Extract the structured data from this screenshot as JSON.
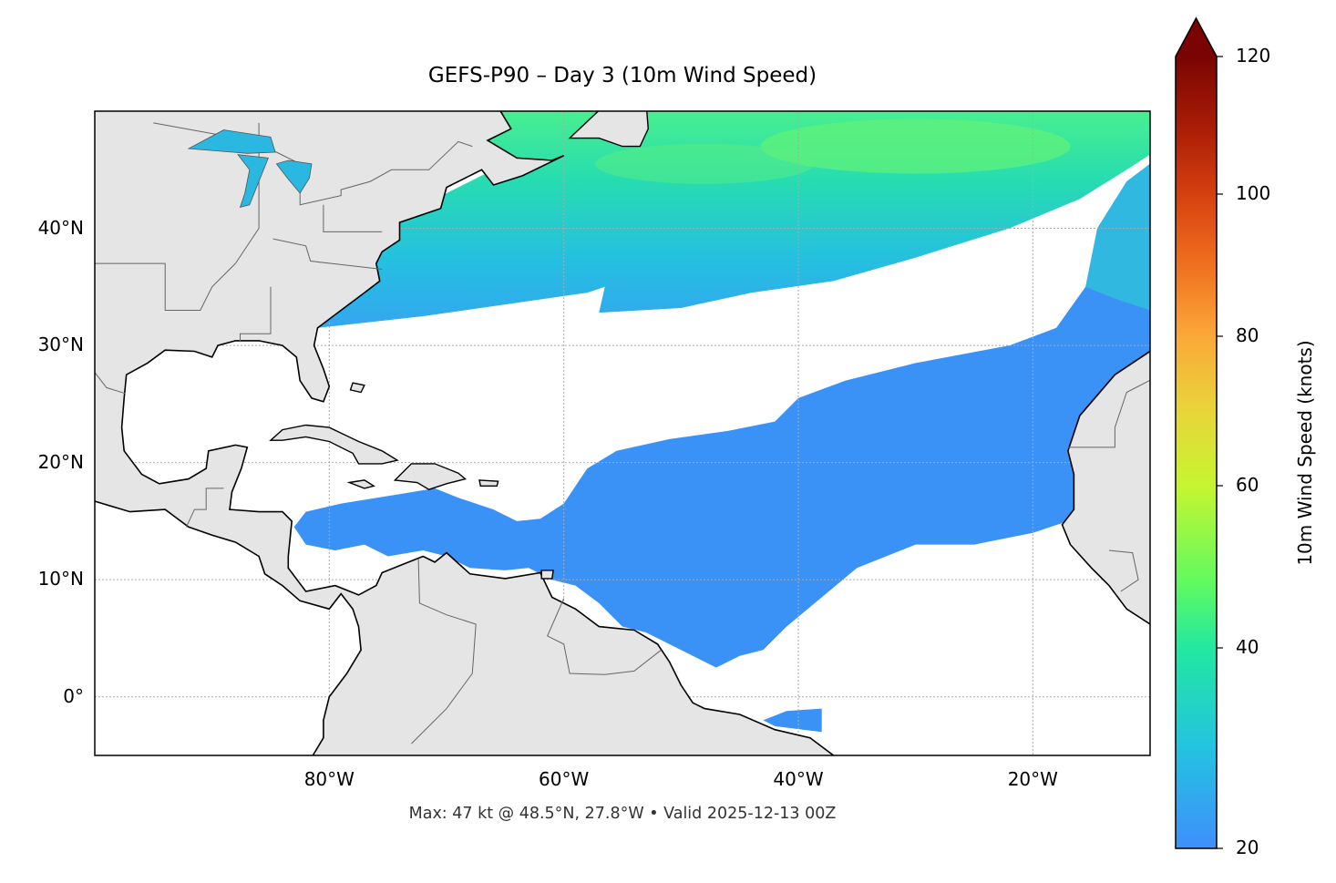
{
  "title": "GEFS-P90 – Day 3 (10m Wind Speed)",
  "footer": "Max: 47 kt @ 48.5°N, 27.8°W • Valid 2025-12-13 00Z",
  "map": {
    "extent": {
      "lon_min": -100,
      "lon_max": -10,
      "lat_min": -5,
      "lat_max": 50
    },
    "projection": "PlateCarree",
    "gridlines": "dotted",
    "lon_ticks": [
      {
        "value": -80,
        "label": "80°W"
      },
      {
        "value": -60,
        "label": "60°W"
      },
      {
        "value": -40,
        "label": "40°W"
      },
      {
        "value": -20,
        "label": "20°W"
      }
    ],
    "lat_ticks": [
      {
        "value": 40,
        "label": "40°N"
      },
      {
        "value": 30,
        "label": "30°N"
      },
      {
        "value": 20,
        "label": "20°N"
      },
      {
        "value": 10,
        "label": "10°N"
      },
      {
        "value": 0,
        "label": "0°"
      }
    ],
    "land_color": "#e5e5e5",
    "coastline_color": "#000000",
    "border_color": "#666666"
  },
  "colorbar": {
    "label": "10m Wind Speed (knots)",
    "range": [
      20,
      120
    ],
    "extend": "max",
    "ticks": [
      {
        "value": 120,
        "label": "120"
      },
      {
        "value": 100,
        "label": "100"
      },
      {
        "value": 80,
        "label": "80"
      },
      {
        "value": 60,
        "label": "60"
      },
      {
        "value": 40,
        "label": "40"
      },
      {
        "value": 20,
        "label": "20"
      }
    ],
    "colors": [
      "#3f8ffc",
      "#23c3e0",
      "#22e8a0",
      "#60fa60",
      "#c6f530",
      "#e8d53a",
      "#fba838",
      "#f07020",
      "#d64010",
      "#a81c06",
      "#7a0403"
    ]
  }
}
